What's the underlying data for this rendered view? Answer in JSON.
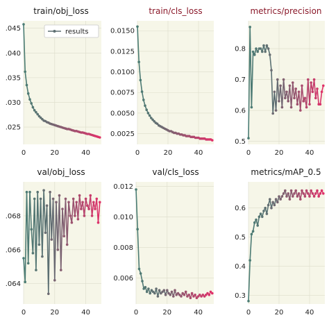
{
  "legend": {
    "label": "results",
    "placement": "top-right"
  },
  "colors": {
    "line_start": "#4a7c74",
    "line_end": "#e0306a",
    "plot_background": "#f6f6e8"
  },
  "chart_data": [
    {
      "type": "line",
      "title": "train/obj_loss",
      "xlim": [
        0,
        50
      ],
      "ylim": [
        0.0215,
        0.0465
      ],
      "xticks": [
        0,
        20,
        40
      ],
      "xtick_labels": [
        "0",
        "20",
        "40"
      ],
      "yticks": [
        0.025,
        0.03,
        0.035,
        0.04,
        0.045
      ],
      "ytick_labels": [
        ".025",
        ".030",
        ".035",
        ".040",
        ".045"
      ],
      "legend": true,
      "x": [
        0,
        1,
        2,
        3,
        4,
        5,
        6,
        7,
        8,
        9,
        10,
        11,
        12,
        13,
        14,
        15,
        16,
        17,
        18,
        19,
        20,
        21,
        22,
        23,
        24,
        25,
        26,
        27,
        28,
        29,
        30,
        31,
        32,
        33,
        34,
        35,
        36,
        37,
        38,
        39,
        40,
        41,
        42,
        43,
        44,
        45,
        46,
        47,
        48,
        49
      ],
      "y": [
        0.0458,
        0.0362,
        0.0335,
        0.0318,
        0.0306,
        0.0298,
        0.029,
        0.0284,
        0.028,
        0.0276,
        0.0272,
        0.0269,
        0.0266,
        0.0263,
        0.0262,
        0.026,
        0.0259,
        0.0257,
        0.0256,
        0.0255,
        0.0254,
        0.0253,
        0.0252,
        0.0251,
        0.025,
        0.0249,
        0.0248,
        0.0247,
        0.0246,
        0.0246,
        0.0245,
        0.0244,
        0.0243,
        0.0242,
        0.0242,
        0.0241,
        0.024,
        0.0239,
        0.0239,
        0.0238,
        0.0237,
        0.0236,
        0.0236,
        0.0235,
        0.0234,
        0.0233,
        0.0232,
        0.0231,
        0.023,
        0.0229
      ]
    },
    {
      "type": "line",
      "title": "train/cls_loss",
      "xlim": [
        0,
        50
      ],
      "ylim": [
        0.0012,
        0.0162
      ],
      "xticks": [
        0,
        20,
        40
      ],
      "xtick_labels": [
        "0",
        "20",
        "40"
      ],
      "yticks": [
        0.0025,
        0.005,
        0.0075,
        0.01,
        0.0125,
        0.015
      ],
      "ytick_labels": [
        "0.0025",
        "0.0050",
        "0.0075",
        "0.0100",
        "0.0125",
        "0.0150"
      ],
      "legend": false,
      "x": [
        0,
        1,
        2,
        3,
        4,
        5,
        6,
        7,
        8,
        9,
        10,
        11,
        12,
        13,
        14,
        15,
        16,
        17,
        18,
        19,
        20,
        21,
        22,
        23,
        24,
        25,
        26,
        27,
        28,
        29,
        30,
        31,
        32,
        33,
        34,
        35,
        36,
        37,
        38,
        39,
        40,
        41,
        42,
        43,
        44,
        45,
        46,
        47,
        48,
        49
      ],
      "y": [
        0.0155,
        0.0112,
        0.009,
        0.0076,
        0.0066,
        0.0059,
        0.0054,
        0.005,
        0.0047,
        0.0044,
        0.0042,
        0.004,
        0.0038,
        0.0037,
        0.0035,
        0.0034,
        0.0033,
        0.0032,
        0.0031,
        0.003,
        0.0029,
        0.0028,
        0.0028,
        0.0027,
        0.0026,
        0.0026,
        0.0025,
        0.0025,
        0.0024,
        0.0024,
        0.0023,
        0.0023,
        0.0022,
        0.0022,
        0.0022,
        0.0021,
        0.0021,
        0.0021,
        0.002,
        0.002,
        0.002,
        0.0019,
        0.0019,
        0.0019,
        0.0019,
        0.0018,
        0.0018,
        0.0018,
        0.0018,
        0.0017
      ]
    },
    {
      "type": "line",
      "title": "metrics/precision",
      "xlim": [
        0,
        50
      ],
      "ylim": [
        0.49,
        0.89
      ],
      "xticks": [
        0,
        20,
        40
      ],
      "xtick_labels": [
        "0",
        "20",
        "40"
      ],
      "yticks": [
        0.5,
        0.6,
        0.7,
        0.8
      ],
      "ytick_labels": [
        "0.5",
        "0.6",
        "0.7",
        "0.8"
      ],
      "legend": false,
      "x": [
        0,
        1,
        2,
        3,
        4,
        5,
        6,
        7,
        8,
        9,
        10,
        11,
        12,
        13,
        14,
        15,
        16,
        17,
        18,
        19,
        20,
        21,
        22,
        23,
        24,
        25,
        26,
        27,
        28,
        29,
        30,
        31,
        32,
        33,
        34,
        35,
        36,
        37,
        38,
        39,
        40,
        41,
        42,
        43,
        44,
        45,
        46,
        47,
        48,
        49
      ],
      "y": [
        0.51,
        0.87,
        0.61,
        0.79,
        0.78,
        0.8,
        0.79,
        0.8,
        0.8,
        0.79,
        0.81,
        0.79,
        0.81,
        0.8,
        0.78,
        0.73,
        0.59,
        0.66,
        0.6,
        0.7,
        0.63,
        0.68,
        0.61,
        0.7,
        0.64,
        0.66,
        0.63,
        0.68,
        0.61,
        0.69,
        0.64,
        0.67,
        0.62,
        0.66,
        0.6,
        0.68,
        0.63,
        0.64,
        0.61,
        0.7,
        0.62,
        0.69,
        0.66,
        0.7,
        0.64,
        0.67,
        0.62,
        0.62,
        0.66,
        0.68
      ]
    },
    {
      "type": "line",
      "title": "val/obj_loss",
      "xlim": [
        0,
        50
      ],
      "ylim": [
        0.0628,
        0.07
      ],
      "xticks": [
        0,
        20,
        40
      ],
      "xtick_labels": [
        "0",
        "20",
        "40"
      ],
      "yticks": [
        0.064,
        0.066,
        0.068
      ],
      "ytick_labels": [
        ".064",
        ".066",
        ".068"
      ],
      "legend": false,
      "x": [
        0,
        1,
        2,
        3,
        4,
        5,
        6,
        7,
        8,
        9,
        10,
        11,
        12,
        13,
        14,
        15,
        16,
        17,
        18,
        19,
        20,
        21,
        22,
        23,
        24,
        25,
        26,
        27,
        28,
        29,
        30,
        31,
        32,
        33,
        34,
        35,
        36,
        37,
        38,
        39,
        40,
        41,
        42,
        43,
        44,
        45,
        46,
        47,
        48,
        49
      ],
      "y": [
        0.0655,
        0.0641,
        0.0694,
        0.0652,
        0.0694,
        0.0672,
        0.0658,
        0.069,
        0.0648,
        0.0694,
        0.0663,
        0.069,
        0.0656,
        0.0695,
        0.067,
        0.0686,
        0.0634,
        0.0694,
        0.0666,
        0.069,
        0.0642,
        0.0688,
        0.066,
        0.0692,
        0.0648,
        0.0684,
        0.0668,
        0.069,
        0.0663,
        0.0688,
        0.068,
        0.0676,
        0.069,
        0.068,
        0.0688,
        0.0678,
        0.0692,
        0.0684,
        0.0688,
        0.068,
        0.069,
        0.0686,
        0.0684,
        0.0692,
        0.068,
        0.0688,
        0.0684,
        0.069,
        0.0676,
        0.0688
      ]
    },
    {
      "type": "line",
      "title": "val/cls_loss",
      "xlim": [
        0,
        50
      ],
      "ylim": [
        0.0043,
        0.0123
      ],
      "xticks": [
        0,
        20,
        40
      ],
      "xtick_labels": [
        "0",
        "20",
        "40"
      ],
      "yticks": [
        0.006,
        0.008,
        0.01,
        0.012
      ],
      "ytick_labels": [
        "0.006",
        "0.008",
        "0.010",
        "0.012"
      ],
      "legend": false,
      "x": [
        0,
        1,
        2,
        3,
        4,
        5,
        6,
        7,
        8,
        9,
        10,
        11,
        12,
        13,
        14,
        15,
        16,
        17,
        18,
        19,
        20,
        21,
        22,
        23,
        24,
        25,
        26,
        27,
        28,
        29,
        30,
        31,
        32,
        33,
        34,
        35,
        36,
        37,
        38,
        39,
        40,
        41,
        42,
        43,
        44,
        45,
        46,
        47,
        48,
        49
      ],
      "y": [
        0.0118,
        0.0092,
        0.0066,
        0.0063,
        0.0058,
        0.0053,
        0.0054,
        0.0051,
        0.0053,
        0.005,
        0.0052,
        0.0051,
        0.005,
        0.0053,
        0.0048,
        0.0052,
        0.005,
        0.0051,
        0.0052,
        0.0049,
        0.0052,
        0.005,
        0.0049,
        0.0051,
        0.0048,
        0.0052,
        0.0049,
        0.005,
        0.0049,
        0.0048,
        0.005,
        0.0049,
        0.0051,
        0.0048,
        0.0049,
        0.0047,
        0.005,
        0.0048,
        0.0049,
        0.0047,
        0.0048,
        0.0049,
        0.0048,
        0.0049,
        0.0048,
        0.0049,
        0.005,
        0.0049,
        0.0051,
        0.005
      ]
    },
    {
      "type": "line",
      "title": "metrics/mAP_0.5",
      "xlim": [
        0,
        50
      ],
      "ylim": [
        0.27,
        0.69
      ],
      "xticks": [
        0,
        20,
        40
      ],
      "xtick_labels": [
        "0",
        "20",
        "40"
      ],
      "yticks": [
        0.3,
        0.4,
        0.5,
        0.6
      ],
      "ytick_labels": [
        "0.3",
        "0.4",
        "0.5",
        "0.6"
      ],
      "legend": false,
      "x": [
        0,
        1,
        2,
        3,
        4,
        5,
        6,
        7,
        8,
        9,
        10,
        11,
        12,
        13,
        14,
        15,
        16,
        17,
        18,
        19,
        20,
        21,
        22,
        23,
        24,
        25,
        26,
        27,
        28,
        29,
        30,
        31,
        32,
        33,
        34,
        35,
        36,
        37,
        38,
        39,
        40,
        41,
        42,
        43,
        44,
        45,
        46,
        47,
        48,
        49
      ],
      "y": [
        0.28,
        0.42,
        0.51,
        0.52,
        0.55,
        0.56,
        0.54,
        0.57,
        0.58,
        0.57,
        0.59,
        0.6,
        0.58,
        0.61,
        0.63,
        0.6,
        0.62,
        0.61,
        0.63,
        0.62,
        0.64,
        0.63,
        0.64,
        0.65,
        0.66,
        0.64,
        0.65,
        0.63,
        0.66,
        0.64,
        0.65,
        0.66,
        0.64,
        0.65,
        0.63,
        0.66,
        0.65,
        0.64,
        0.66,
        0.65,
        0.64,
        0.66,
        0.65,
        0.64,
        0.65,
        0.66,
        0.64,
        0.65,
        0.66,
        0.65
      ]
    }
  ]
}
